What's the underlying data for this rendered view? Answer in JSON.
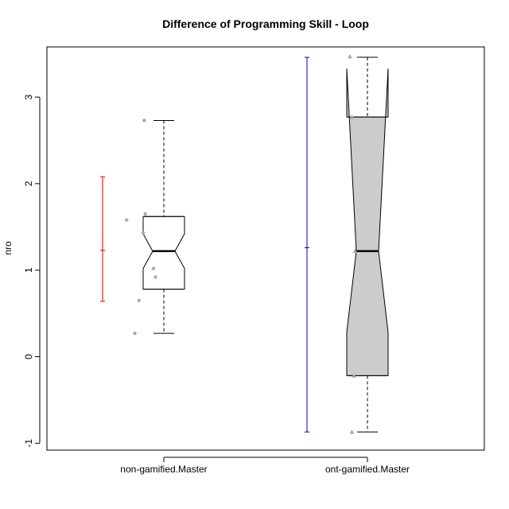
{
  "chart_data": {
    "type": "boxplot",
    "title": "Difference of Programming Skill - Loop",
    "xlabel": "",
    "ylabel": "nro",
    "ylim": [
      -1.08,
      3.58
    ],
    "yticks": [
      -1,
      0,
      1,
      2,
      3
    ],
    "categories": [
      "non-gamified.Master",
      "ont-gamified.Master"
    ],
    "boxes": [
      {
        "name": "non-gamified.Master",
        "whisker_low": 0.27,
        "q1": 0.78,
        "median": 1.22,
        "q3": 1.62,
        "whisker_high": 2.73,
        "notch_low": 1.02,
        "notch_high": 1.42,
        "fill": "#ffffff",
        "points": [
          {
            "x": -0.36,
            "y": 1.58
          },
          {
            "x": -0.28,
            "y": 0.27
          },
          {
            "x": -0.24,
            "y": 0.65
          },
          {
            "x": -0.2,
            "y": 1.43
          },
          {
            "x": -0.19,
            "y": 2.73
          },
          {
            "x": -0.18,
            "y": 1.65
          },
          {
            "x": -0.1,
            "y": 1.02
          },
          {
            "x": -0.08,
            "y": 0.92
          }
        ],
        "point_shape": "circle",
        "mean": 1.23,
        "ci_low": 0.64,
        "ci_high": 2.08,
        "ci_color": "#dd0000"
      },
      {
        "name": "ont-gamified.Master",
        "whisker_low": -0.87,
        "q1": -0.22,
        "median": 1.22,
        "q3": 2.77,
        "whisker_high": 3.46,
        "notch_low": 0.28,
        "notch_high": 3.33,
        "fill": "#cccccc",
        "points": [
          {
            "x": -0.17,
            "y": 3.47
          },
          {
            "x": -0.15,
            "y": 2.77
          },
          {
            "x": -0.15,
            "y": -0.87
          },
          {
            "x": -0.13,
            "y": -0.22
          },
          {
            "x": -0.12,
            "y": 1.22
          }
        ],
        "point_shape": "triangle",
        "mean": 1.26,
        "ci_low": -0.87,
        "ci_high": 3.46,
        "ci_color": "#0000cc"
      }
    ],
    "colors": {
      "points": "#aaaaaa",
      "stroke": "#000000"
    }
  }
}
